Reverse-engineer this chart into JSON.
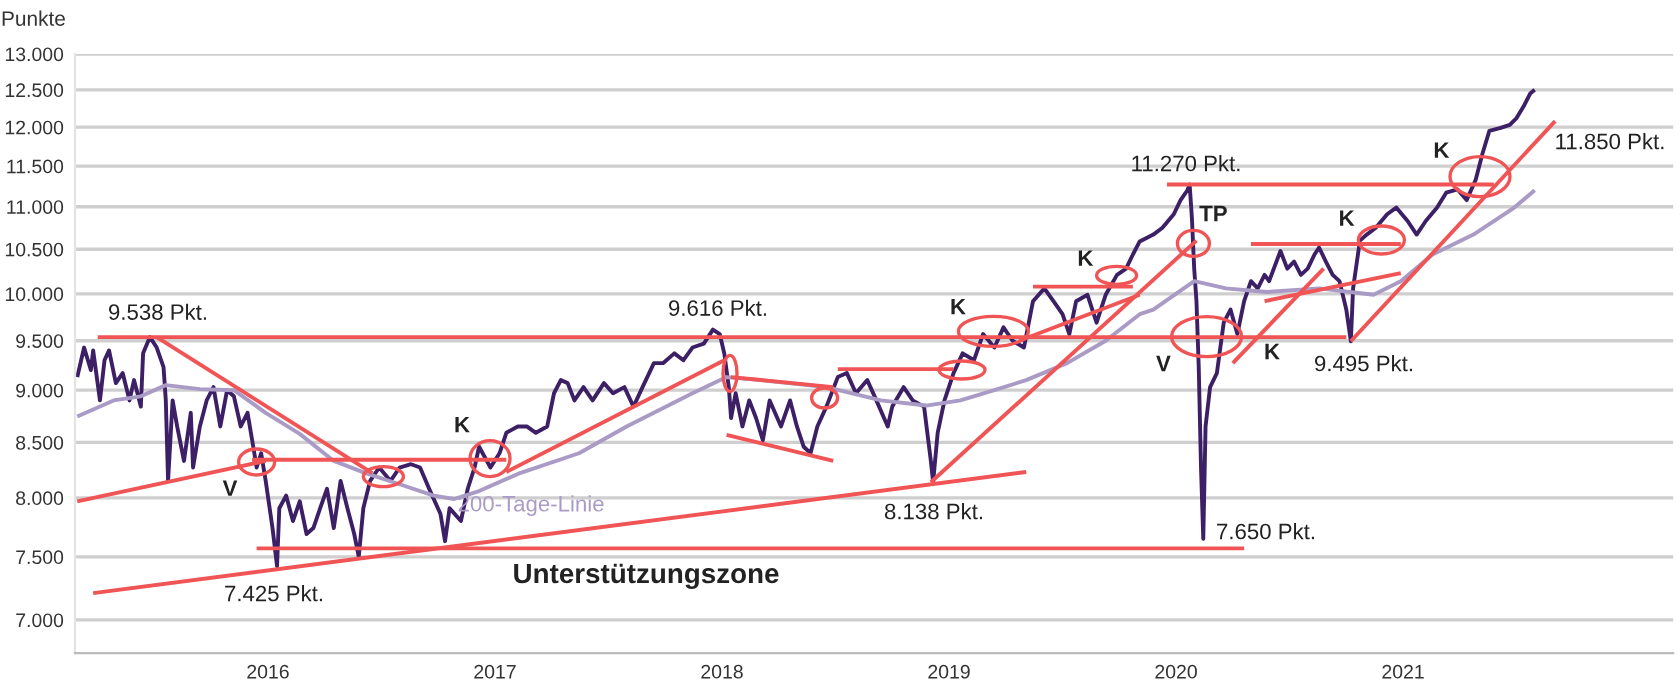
{
  "chart_data": {
    "type": "line",
    "ylabel": "Punkte",
    "log": "y",
    "grid": "y",
    "line_style": "solid",
    "xlim": [
      2015.15,
      2022.19
    ],
    "xticks": [
      2016,
      2017,
      2018,
      2019,
      2020,
      2021
    ],
    "ylim": [
      6750,
      13000
    ],
    "yticks": [
      {
        "value": 7000,
        "label": "7.000"
      },
      {
        "value": 7500,
        "label": "7.500"
      },
      {
        "value": 8000,
        "label": "8.000"
      },
      {
        "value": 8500,
        "label": "8.500"
      },
      {
        "value": 9000,
        "label": "9.000"
      },
      {
        "value": 9500,
        "label": "9.500"
      },
      {
        "value": 10000,
        "label": "10.000"
      },
      {
        "value": 10500,
        "label": "10.500"
      },
      {
        "value": 11000,
        "label": "11.000"
      },
      {
        "value": 11500,
        "label": "11.500"
      },
      {
        "value": 12000,
        "label": "12.000"
      },
      {
        "value": 12500,
        "label": "12.500"
      },
      {
        "value": 13000,
        "label": "13.000"
      }
    ],
    "series": [
      {
        "color": "#3d1f66",
        "x": [
          2015.16,
          2015.19,
          2015.22,
          2015.23,
          2015.26,
          2015.28,
          2015.3,
          2015.33,
          2015.36,
          2015.39,
          2015.41,
          2015.44,
          2015.45,
          2015.48,
          2015.51,
          2015.54,
          2015.55,
          2015.56,
          2015.58,
          2015.6,
          2015.63,
          2015.66,
          2015.67,
          2015.7,
          2015.73,
          2015.76,
          2015.79,
          2015.82,
          2015.85,
          2015.88,
          2015.91,
          2015.94,
          2015.95,
          2015.97,
          2015.99,
          2016.02,
          2016.04,
          2016.05,
          2016.08,
          2016.11,
          2016.14,
          2016.17,
          2016.2,
          2016.23,
          2016.26,
          2016.29,
          2016.32,
          2016.35,
          2016.38,
          2016.4,
          2016.42,
          2016.45,
          2016.49,
          2016.54,
          2016.58,
          2016.63,
          2016.67,
          2016.71,
          2016.76,
          2016.78,
          2016.8,
          2016.85,
          2016.88,
          2016.91,
          2016.93,
          2016.98,
          2017.02,
          2017.05,
          2017.1,
          2017.14,
          2017.18,
          2017.23,
          2017.26,
          2017.29,
          2017.32,
          2017.35,
          2017.39,
          2017.43,
          2017.48,
          2017.52,
          2017.57,
          2017.61,
          2017.65,
          2017.7,
          2017.74,
          2017.79,
          2017.83,
          2017.87,
          2017.92,
          2017.96,
          2017.99,
          2018.01,
          2018.03,
          2018.04,
          2018.06,
          2018.09,
          2018.12,
          2018.15,
          2018.18,
          2018.21,
          2018.26,
          2018.3,
          2018.33,
          2018.36,
          2018.39,
          2018.42,
          2018.46,
          2018.51,
          2018.55,
          2018.59,
          2018.64,
          2018.68,
          2018.73,
          2018.75,
          2018.8,
          2018.84,
          2018.89,
          2018.92,
          2018.93,
          2018.95,
          2018.98,
          2019.02,
          2019.06,
          2019.11,
          2019.15,
          2019.2,
          2019.24,
          2019.28,
          2019.33,
          2019.37,
          2019.42,
          2019.46,
          2019.5,
          2019.53,
          2019.56,
          2019.61,
          2019.65,
          2019.69,
          2019.74,
          2019.78,
          2019.81,
          2019.84,
          2019.9,
          2019.94,
          2019.99,
          2020.02,
          2020.05,
          2020.06,
          2020.07,
          2020.08,
          2020.09,
          2020.1,
          2020.11,
          2020.12,
          2020.13,
          2020.15,
          2020.18,
          2020.21,
          2020.24,
          2020.27,
          2020.3,
          2020.33,
          2020.36,
          2020.39,
          2020.41,
          2020.46,
          2020.49,
          2020.52,
          2020.55,
          2020.58,
          2020.61,
          2020.63,
          2020.66,
          2020.69,
          2020.72,
          2020.75,
          2020.77,
          2020.78,
          2020.81,
          2020.84,
          2020.88,
          2020.93,
          2020.97,
          2021.02,
          2021.06,
          2021.1,
          2021.15,
          2021.19,
          2021.24,
          2021.28,
          2021.32,
          2021.35,
          2021.38,
          2021.43,
          2021.47,
          2021.5,
          2021.53,
          2021.56,
          2021.58
        ],
        "values": [
          9130,
          9430,
          9200,
          9400,
          8900,
          9300,
          9400,
          9070,
          9170,
          8900,
          9100,
          8840,
          9370,
          9538,
          9430,
          9230,
          8900,
          8150,
          8900,
          8650,
          8330,
          8780,
          8270,
          8650,
          8900,
          9030,
          8650,
          9000,
          8940,
          8650,
          8780,
          8400,
          8270,
          8400,
          8150,
          7740,
          7425,
          7910,
          8020,
          7800,
          7970,
          7690,
          7740,
          7910,
          8080,
          7740,
          8150,
          7910,
          7690,
          7500,
          7910,
          8150,
          8270,
          8150,
          8270,
          8300,
          8270,
          8080,
          7860,
          7630,
          7910,
          7800,
          8080,
          8270,
          8460,
          8270,
          8400,
          8590,
          8650,
          8650,
          8590,
          8650,
          8970,
          9100,
          9070,
          8900,
          9030,
          8900,
          9070,
          8970,
          9030,
          8840,
          9030,
          9270,
          9270,
          9370,
          9300,
          9430,
          9470,
          9616,
          9570,
          9370,
          9030,
          8730,
          8970,
          8650,
          8900,
          8730,
          8520,
          8900,
          8650,
          8900,
          8650,
          8460,
          8400,
          8650,
          8840,
          9130,
          9170,
          8970,
          9100,
          8900,
          8650,
          8840,
          9030,
          8900,
          8840,
          8330,
          8138,
          8590,
          8900,
          9170,
          9370,
          9300,
          9570,
          9430,
          9640,
          9500,
          9430,
          9920,
          10060,
          9920,
          9780,
          9570,
          9920,
          9990,
          9690,
          9990,
          10210,
          10280,
          10440,
          10590,
          10670,
          10750,
          10910,
          11080,
          11200,
          11270,
          10860,
          10280,
          9920,
          9230,
          8270,
          7650,
          8650,
          9030,
          9170,
          9690,
          9830,
          9570,
          9920,
          10140,
          10060,
          10210,
          10140,
          10480,
          10280,
          10360,
          10210,
          10280,
          10440,
          10520,
          10360,
          10210,
          10140,
          9830,
          9495,
          10060,
          10600,
          10670,
          10750,
          10910,
          10990,
          10830,
          10670,
          10830,
          10990,
          11170,
          11210,
          11080,
          11330,
          11660,
          11950,
          11990,
          12030,
          12120,
          12270,
          12450,
          12500
        ]
      },
      {
        "name": "200-Tage-Linie",
        "color": "#a99bc6",
        "x": [
          2015.16,
          2015.32,
          2015.44,
          2015.55,
          2015.7,
          2015.85,
          2015.99,
          2016.14,
          2016.29,
          2016.43,
          2016.58,
          2016.73,
          2016.82,
          2016.93,
          2017.11,
          2017.37,
          2017.58,
          2017.87,
          2018.02,
          2018.17,
          2018.46,
          2018.7,
          2018.9,
          2019.05,
          2019.2,
          2019.34,
          2019.52,
          2019.69,
          2019.84,
          2019.9,
          2020.08,
          2020.22,
          2020.4,
          2020.63,
          2020.87,
          2020.99,
          2021.13,
          2021.31,
          2021.49,
          2021.58
        ],
        "values": [
          8745,
          8900,
          8940,
          9050,
          9010,
          9000,
          8780,
          8580,
          8330,
          8220,
          8120,
          8020,
          7990,
          8060,
          8220,
          8400,
          8650,
          8970,
          9130,
          9100,
          9030,
          8900,
          8850,
          8900,
          9000,
          9100,
          9270,
          9500,
          9780,
          9830,
          10140,
          10060,
          10020,
          10060,
          9990,
          10140,
          10440,
          10670,
          10990,
          11200
        ]
      },
      {
        "color": "#f05454",
        "x": [
          2015.25,
          2020.75
        ],
        "values": [
          9538,
          9538
        ]
      },
      {
        "color": "#f05454",
        "x": [
          2015.51,
          2016.46
        ],
        "values": [
          9538,
          8220
        ]
      },
      {
        "color": "#f05454",
        "x": [
          2015.16,
          2015.99
        ],
        "values": [
          7970,
          8330
        ]
      },
      {
        "color": "#f05454",
        "x": [
          2015.93,
          2017.05
        ],
        "values": [
          8340,
          8340
        ]
      },
      {
        "color": "#f05454",
        "x": [
          2015.95,
          2020.3
        ],
        "values": [
          7570,
          7570
        ]
      },
      {
        "color": "#f05454",
        "x": [
          2015.23,
          2019.34
        ],
        "values": [
          7208,
          8230
        ]
      },
      {
        "color": "#f05454",
        "x": [
          2017.05,
          2018.01
        ],
        "values": [
          8230,
          9300
        ]
      },
      {
        "color": "#f05454",
        "x": [
          2018.04,
          2018.49
        ],
        "values": [
          9130,
          9030
        ]
      },
      {
        "color": "#f05454",
        "x": [
          2018.02,
          2018.49
        ],
        "values": [
          8570,
          8330
        ]
      },
      {
        "color": "#f05454",
        "x": [
          2018.51,
          2019.02
        ],
        "values": [
          9210,
          9210
        ]
      },
      {
        "color": "#f05454",
        "x": [
          2018.92,
          2020.09
        ],
        "values": [
          8138,
          10600
        ]
      },
      {
        "color": "#f05454",
        "x": [
          2019.31,
          2019.84
        ],
        "values": [
          9500,
          9990
        ]
      },
      {
        "color": "#f05454",
        "x": [
          2019.37,
          2019.81
        ],
        "values": [
          10080,
          10080
        ]
      },
      {
        "color": "#f05454",
        "x": [
          2019.96,
          2021.4
        ],
        "values": [
          11270,
          11270
        ]
      },
      {
        "color": "#f05454",
        "x": [
          2020.25,
          2020.65
        ],
        "values": [
          9270,
          10280
        ]
      },
      {
        "color": "#f05454",
        "x": [
          2020.33,
          2020.99
        ],
        "values": [
          10560,
          10560
        ]
      },
      {
        "color": "#f05454",
        "x": [
          2020.39,
          2020.99
        ],
        "values": [
          9920,
          10230
        ]
      },
      {
        "color": "#f05454",
        "x": [
          2020.77,
          2021.67
        ],
        "values": [
          9495,
          12080
        ]
      }
    ],
    "annotations": [
      "9.538 Pkt.",
      "7.425 Pkt.",
      "V",
      "K",
      "9.616 Pkt.",
      "K",
      "8.138 Pkt.",
      "K",
      "Unterstützungszone",
      "11.270 Pkt.",
      "TP",
      "V",
      "K",
      "9.495 Pkt.",
      "K",
      "K",
      "11.850 Pkt.",
      "7.650 Pkt."
    ]
  }
}
